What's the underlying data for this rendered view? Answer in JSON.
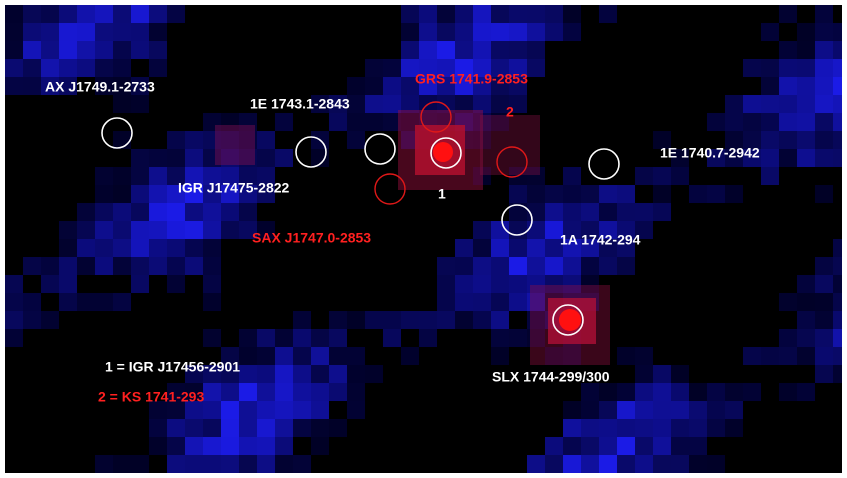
{
  "labels": {
    "ax_j1749": "AX J1749.1-2733",
    "e1743": "1E 1743.1-2843",
    "grs1741": "GRS 1741.9-2853",
    "marker2": "2",
    "e1740": "1E 1740.7-2942",
    "igr17475": "IGR J17475-2822",
    "marker1": "1",
    "sax1747": "SAX J1747.0-2853",
    "a1742": "1A 1742-294",
    "slx1744": "SLX 1744-299/300"
  },
  "legend": {
    "item1": "1 = IGR J17456-2901",
    "item2": "2 = KS 1741-293"
  }
}
